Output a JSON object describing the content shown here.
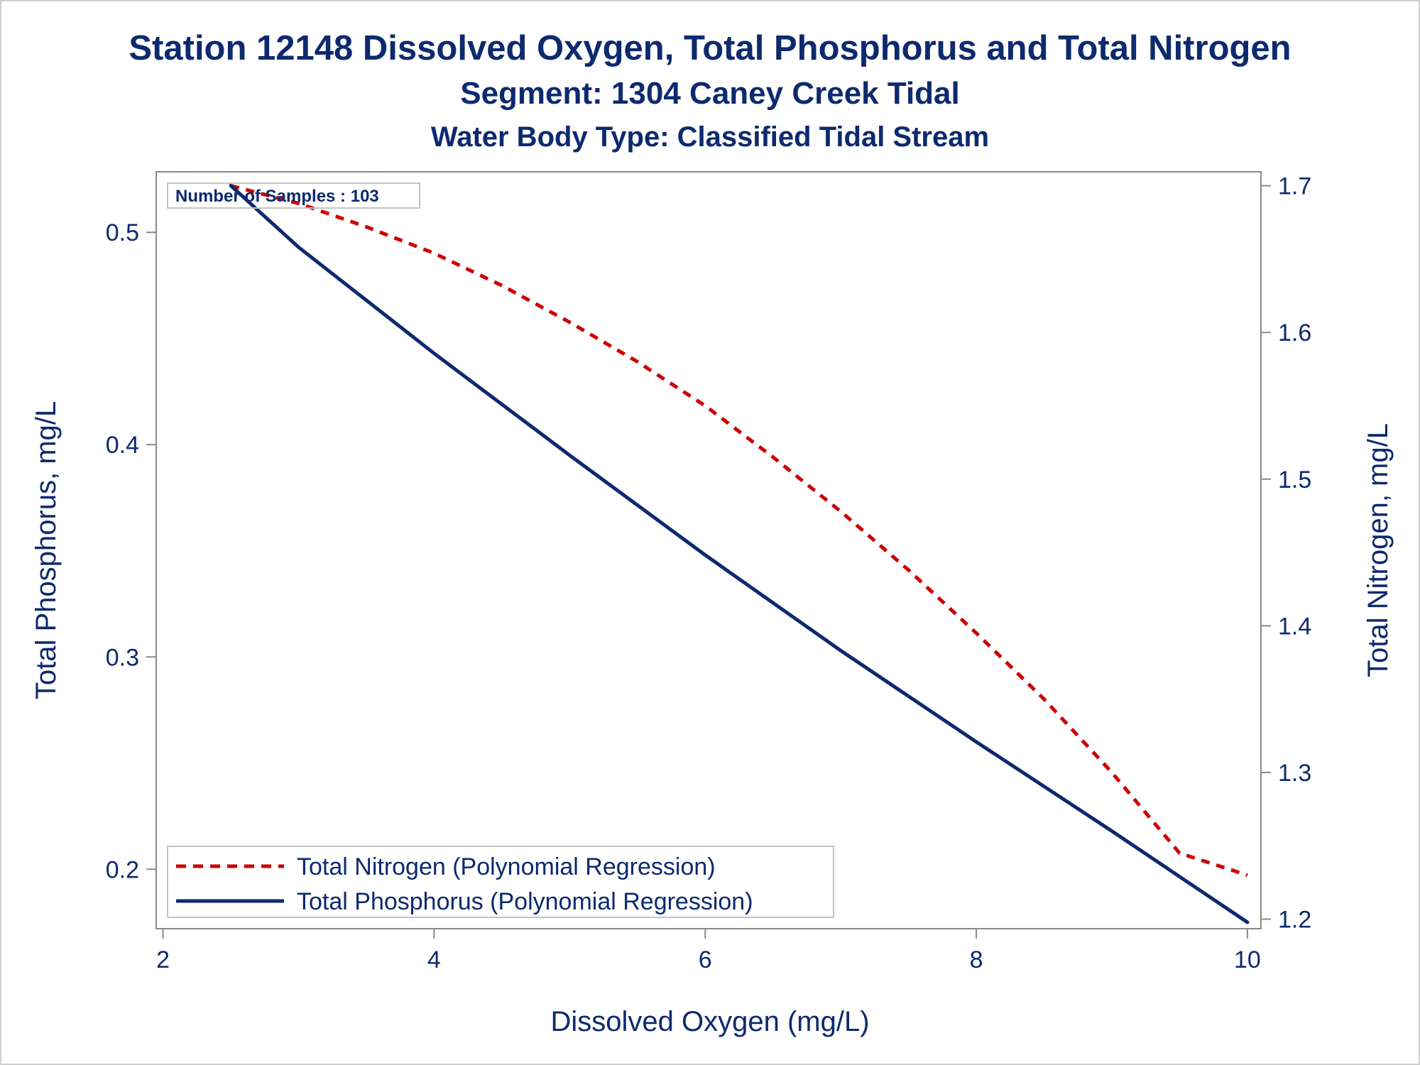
{
  "titles": {
    "line1": "Station 12148  Dissolved Oxygen, Total Phosphorus and Total Nitrogen",
    "line2": "Segment: 1304  Caney Creek Tidal",
    "line3": "Water Body Type: Classified Tidal Stream"
  },
  "colors": {
    "text": "#0d2a6e",
    "nitrogen_line": "#cc0000",
    "phosphorus_line": "#0d2a6e",
    "axis": "#8a8a8a"
  },
  "chart_data": {
    "type": "line",
    "xlabel": "Dissolved Oxygen (mg/L)",
    "ylabel": "Total Phosphorus, mg/L",
    "y2label": "Total Nitrogen, mg/L",
    "xlim": [
      1.95,
      10.1
    ],
    "ylim": [
      0.172,
      0.5285
    ],
    "y2lim": [
      1.1935,
      1.7095
    ],
    "xticks": [
      "2",
      "4",
      "6",
      "8",
      "10"
    ],
    "xtick_values": [
      2,
      4,
      6,
      8,
      10
    ],
    "yticks": [
      "0.2",
      "0.3",
      "0.4",
      "0.5"
    ],
    "ytick_values": [
      0.2,
      0.3,
      0.4,
      0.5
    ],
    "y2ticks": [
      "1.2",
      "1.3",
      "1.4",
      "1.5",
      "1.6",
      "1.7"
    ],
    "y2tick_values": [
      1.2,
      1.3,
      1.4,
      1.5,
      1.6,
      1.7
    ],
    "annotation": "Number of Samples : 103",
    "legend_position": "bottom-left",
    "grid": false,
    "series": [
      {
        "name": "Total Nitrogen (Polynomial Regression)",
        "axis": "right",
        "style": "dashed",
        "x": [
          2.5,
          3,
          3.5,
          4,
          4.5,
          5,
          5.5,
          6,
          6.5,
          7,
          7.5,
          8,
          8.5,
          9,
          9.5,
          10
        ],
        "values": [
          1.7,
          1.688,
          1.672,
          1.654,
          1.632,
          1.607,
          1.58,
          1.55,
          1.515,
          1.478,
          1.438,
          1.395,
          1.35,
          1.3,
          1.245,
          1.23
        ]
      },
      {
        "name": "Total Phosphorus (Polynomial Regression)",
        "axis": "left",
        "style": "solid",
        "x": [
          2.5,
          3,
          4,
          5,
          6,
          7,
          8,
          9,
          10
        ],
        "values": [
          0.522,
          0.493,
          0.443,
          0.395,
          0.348,
          0.303,
          0.26,
          0.218,
          0.175
        ]
      }
    ]
  }
}
